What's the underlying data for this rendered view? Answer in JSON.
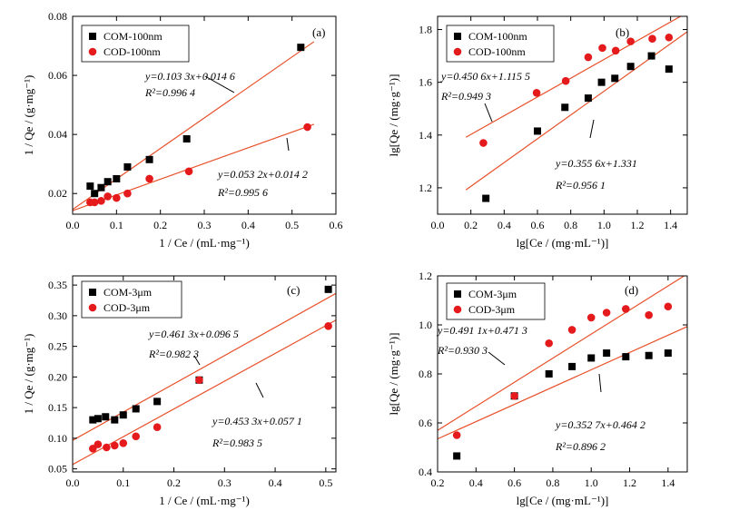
{
  "chart_data": [
    {
      "panel": "(a)",
      "type": "scatter",
      "xlabel": "1 / Ce / (mL·mg⁻¹)",
      "ylabel": "1 / Qe / (g·mg⁻¹)",
      "xlim": [
        0.0,
        0.6
      ],
      "ylim": [
        0.013,
        0.08
      ],
      "xticks": [
        0.0,
        0.1,
        0.2,
        0.3,
        0.4,
        0.5,
        0.6
      ],
      "yticks": [
        0.02,
        0.04,
        0.06,
        0.08
      ],
      "xtick_labels": [
        "0.0",
        "0.1",
        "0.2",
        "0.3",
        "0.4",
        "0.5",
        "0.6"
      ],
      "ytick_labels": [
        "0.02",
        "0.04",
        "0.06",
        "0.08"
      ],
      "legend_position": "top-left",
      "series": [
        {
          "name": "COM-100nm",
          "marker": "square",
          "color": "#000000",
          "points": [
            [
              0.04,
              0.0225
            ],
            [
              0.05,
              0.02
            ],
            [
              0.065,
              0.022
            ],
            [
              0.08,
              0.024
            ],
            [
              0.1,
              0.025
            ],
            [
              0.125,
              0.029
            ],
            [
              0.175,
              0.0315
            ],
            [
              0.26,
              0.0385
            ],
            [
              0.52,
              0.0695
            ]
          ],
          "fit": {
            "slope": 0.1033,
            "intercept": 0.0146,
            "x_range": [
              0.0,
              0.55
            ]
          },
          "equation": "y=0.103 3x+0.014 6",
          "r2": "R²=0.996 4"
        },
        {
          "name": "COD-100nm",
          "marker": "circle",
          "color": "#e41a1c",
          "points": [
            [
              0.04,
              0.017
            ],
            [
              0.05,
              0.017
            ],
            [
              0.065,
              0.0175
            ],
            [
              0.08,
              0.019
            ],
            [
              0.1,
              0.0185
            ],
            [
              0.125,
              0.02
            ],
            [
              0.175,
              0.025
            ],
            [
              0.265,
              0.0275
            ],
            [
              0.535,
              0.0425
            ]
          ],
          "fit": {
            "slope": 0.0532,
            "intercept": 0.0142,
            "x_range": [
              0.0,
              0.55
            ]
          },
          "equation": "y=0.053 2x+0.014 2",
          "r2": "R²=0.995 6"
        }
      ]
    },
    {
      "panel": "(b)",
      "type": "scatter",
      "xlabel": "lg[Ce / (mg·mL⁻¹)]",
      "ylabel": "lg[Qe / (mg·g⁻¹)]",
      "xlim": [
        0.0,
        1.5
      ],
      "ylim": [
        1.1,
        1.85
      ],
      "xticks": [
        0.0,
        0.2,
        0.4,
        0.6,
        0.8,
        1.0,
        1.2,
        1.4
      ],
      "yticks": [
        1.2,
        1.4,
        1.6,
        1.8
      ],
      "xtick_labels": [
        "0.0",
        "0.2",
        "0.4",
        "0.6",
        "0.8",
        "1.0",
        "1.2",
        "1.4"
      ],
      "ytick_labels": [
        "1.2",
        "1.4",
        "1.6",
        "1.8"
      ],
      "legend_position": "top-left",
      "series": [
        {
          "name": "COM-100nm",
          "marker": "square",
          "color": "#000000",
          "points": [
            [
              0.29,
              1.16
            ],
            [
              0.6,
              1.415
            ],
            [
              0.765,
              1.505
            ],
            [
              0.905,
              1.54
            ],
            [
              0.985,
              1.6
            ],
            [
              1.065,
              1.615
            ],
            [
              1.16,
              1.66
            ],
            [
              1.285,
              1.7
            ],
            [
              1.39,
              1.65
            ]
          ],
          "fit": {
            "slope": 0.3556,
            "intercept": 1.331,
            "x_range": [
              0.17,
              1.5
            ]
          },
          "equation": "y=0.355 6x+1.331",
          "r2": "R²=0.956 1"
        },
        {
          "name": "COD-100nm",
          "marker": "circle",
          "color": "#e41a1c",
          "points": [
            [
              0.275,
              1.37
            ],
            [
              0.595,
              1.56
            ],
            [
              0.77,
              1.605
            ],
            [
              0.905,
              1.695
            ],
            [
              0.99,
              1.73
            ],
            [
              1.07,
              1.72
            ],
            [
              1.16,
              1.755
            ],
            [
              1.29,
              1.765
            ],
            [
              1.39,
              1.77
            ]
          ],
          "fit": {
            "slope": 0.4506,
            "intercept": 1.1155,
            "x_range": [
              0.17,
              1.5
            ]
          },
          "equation": "y=0.450 6x+1.115 5",
          "r2": "R²=0.949 3"
        }
      ]
    },
    {
      "panel": "(c)",
      "type": "scatter",
      "xlabel": "1 / Ce / (mL·mg⁻¹)",
      "ylabel": "1 / Qe / (g·mg⁻¹)",
      "xlim": [
        0.0,
        0.52
      ],
      "ylim": [
        0.045,
        0.365
      ],
      "xticks": [
        0.0,
        0.1,
        0.2,
        0.3,
        0.4,
        0.5
      ],
      "yticks": [
        0.05,
        0.1,
        0.15,
        0.2,
        0.25,
        0.3,
        0.35
      ],
      "xtick_labels": [
        "0.0",
        "0.1",
        "0.2",
        "0.3",
        "0.4",
        "0.5"
      ],
      "ytick_labels": [
        "0.05",
        "0.10",
        "0.15",
        "0.20",
        "0.25",
        "0.30",
        "0.35"
      ],
      "legend_position": "top-left",
      "series": [
        {
          "name": "COM-3μm",
          "marker": "square",
          "color": "#000000",
          "points": [
            [
              0.04,
              0.13
            ],
            [
              0.05,
              0.132
            ],
            [
              0.065,
              0.135
            ],
            [
              0.083,
              0.13
            ],
            [
              0.1,
              0.138
            ],
            [
              0.125,
              0.148
            ],
            [
              0.167,
              0.16
            ],
            [
              0.25,
              0.195
            ],
            [
              0.505,
              0.343
            ]
          ],
          "fit": {
            "slope": 0.4613,
            "intercept": 0.0965,
            "x_range": [
              0.0,
              0.52
            ]
          },
          "equation": "y=0.461 3x+0.096 5",
          "r2": "R²=0.982 3"
        },
        {
          "name": "COD-3μm",
          "marker": "circle",
          "color": "#e41a1c",
          "points": [
            [
              0.04,
              0.083
            ],
            [
              0.05,
              0.09
            ],
            [
              0.067,
              0.085
            ],
            [
              0.083,
              0.088
            ],
            [
              0.1,
              0.092
            ],
            [
              0.125,
              0.103
            ],
            [
              0.167,
              0.118
            ],
            [
              0.25,
              0.195
            ],
            [
              0.505,
              0.283
            ]
          ],
          "fit": {
            "slope": 0.4533,
            "intercept": 0.0571,
            "x_range": [
              0.0,
              0.52
            ]
          },
          "equation": "y=0.453 3x+0.057 1",
          "r2": "R²=0.983 5"
        }
      ]
    },
    {
      "panel": "(d)",
      "type": "scatter",
      "xlabel": "lg[Ce / (mg·mL⁻¹)]",
      "ylabel": "lg[Qe / (mg·g⁻¹)]",
      "xlim": [
        0.2,
        1.5
      ],
      "ylim": [
        0.4,
        1.2
      ],
      "xticks": [
        0.2,
        0.4,
        0.6,
        0.8,
        1.0,
        1.2,
        1.4
      ],
      "yticks": [
        0.4,
        0.6,
        0.8,
        1.0,
        1.2
      ],
      "xtick_labels": [
        "0.2",
        "0.4",
        "0.6",
        "0.8",
        "1.0",
        "1.2",
        "1.4"
      ],
      "ytick_labels": [
        "0.4",
        "0.6",
        "0.8",
        "1.0",
        "1.2"
      ],
      "legend_position": "top-left",
      "series": [
        {
          "name": "COM-3μm",
          "marker": "square",
          "color": "#000000",
          "points": [
            [
              0.3,
              0.465
            ],
            [
              0.6,
              0.71
            ],
            [
              0.78,
              0.8
            ],
            [
              0.9,
              0.83
            ],
            [
              1.0,
              0.865
            ],
            [
              1.08,
              0.885
            ],
            [
              1.18,
              0.87
            ],
            [
              1.3,
              0.875
            ],
            [
              1.4,
              0.885
            ]
          ],
          "fit": {
            "slope": 0.3527,
            "intercept": 0.4642,
            "x_range": [
              0.2,
              1.5
            ]
          },
          "equation": "y=0.352 7x+0.464 2",
          "r2": "R²=0.896 2"
        },
        {
          "name": "COD-3μm",
          "marker": "circle",
          "color": "#e41a1c",
          "points": [
            [
              0.3,
              0.55
            ],
            [
              0.6,
              0.71
            ],
            [
              0.78,
              0.925
            ],
            [
              0.9,
              0.98
            ],
            [
              1.0,
              1.03
            ],
            [
              1.08,
              1.05
            ],
            [
              1.18,
              1.065
            ],
            [
              1.3,
              1.04
            ],
            [
              1.4,
              1.075
            ]
          ],
          "fit": {
            "slope": 0.4911,
            "intercept": 0.4713,
            "x_range": [
              0.2,
              1.5
            ]
          },
          "equation": "y=0.491 1x+0.471 3",
          "r2": "R²=0.930 3"
        }
      ]
    }
  ]
}
